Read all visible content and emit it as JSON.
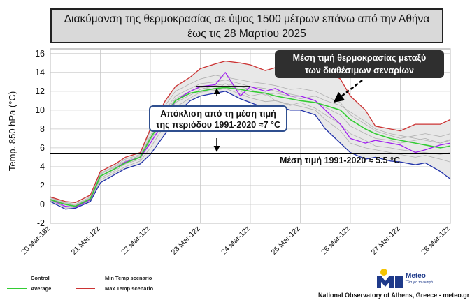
{
  "header": {
    "title_line1": "Διακύμανση της θερμοκρασίας σε ύψος 1500 μέτρων επάνω από την Αθήνα",
    "title_line2": "έως τις 28 Μαρτίου 2025"
  },
  "annotations": {
    "callout_line1": "Μέση τιμή θερμοκρασίας μεταξύ",
    "callout_line2": "των διαθέσιμων σεναρίων",
    "deviation_line1": "Απόκλιση από τη μέση τιμή",
    "deviation_line2": "της περιόδου 1991-2020  ≈7 °C",
    "mean_label": "Μέση τιμή 1991-2020  ≈ 5.5 °C"
  },
  "legend": {
    "control": "Control",
    "average": "Average",
    "min": "Min Temp scenario",
    "max": "Max Temp scenario"
  },
  "footer": {
    "text": "National Observatory of Athens, Greece - meteo.gr"
  },
  "logo": {
    "name": "Meteo",
    "tagline": "Όλα για τον καιρό"
  },
  "colors": {
    "control": "#a020f0",
    "average": "#33cc33",
    "min": "#2233aa",
    "max": "#cc3333",
    "ensemble": "#b0b0b0",
    "band": "#e8e8e8",
    "mean_line": "#000000"
  },
  "chart_data": {
    "type": "line",
    "title": "",
    "ylabel": "Temp. 850 hPa (°C)",
    "xlabel": "",
    "ylim": [
      -2,
      16.5
    ],
    "yticks": [
      -2,
      0,
      2,
      4,
      6,
      8,
      10,
      12,
      14,
      16
    ],
    "xlim": [
      0,
      8
    ],
    "xtick_labels": [
      "20 Mar-18z",
      "21 Mar-12z",
      "22 Mar-12z",
      "23 Mar-12z",
      "24 Mar-12z",
      "25 Mar-12z",
      "26 Mar-12z",
      "27 Mar-12z",
      "28 Mar-12z"
    ],
    "x": [
      0,
      0.3,
      0.5,
      0.8,
      1.0,
      1.3,
      1.5,
      1.8,
      2.0,
      2.3,
      2.5,
      2.8,
      3.0,
      3.3,
      3.5,
      3.8,
      4.0,
      4.3,
      4.5,
      4.8,
      5.0,
      5.3,
      5.5,
      5.8,
      6.0,
      6.3,
      6.5,
      6.8,
      7.0,
      7.3,
      7.5,
      7.8,
      8.0
    ],
    "reference_mean": 5.4,
    "reference_label": "Μέση τιμή 1991-2020  ≈ 5.5 °C",
    "deviation_arrow": {
      "from": 5.4,
      "to": 12.5
    },
    "series": [
      {
        "name": "Max Temp scenario",
        "key": "max",
        "values": [
          0.8,
          0.3,
          0.2,
          1.0,
          3.5,
          4.3,
          5.0,
          5.5,
          8.0,
          11.0,
          12.5,
          13.5,
          14.4,
          14.9,
          15.2,
          15.0,
          14.8,
          14.2,
          14.5,
          14.3,
          14.5,
          14.6,
          14.3,
          13.3,
          11.5,
          10.0,
          8.3,
          8.0,
          7.8,
          8.5,
          8.5,
          8.5,
          9.0
        ]
      },
      {
        "name": "Control",
        "key": "control",
        "values": [
          0.5,
          -0.2,
          -0.3,
          0.5,
          3.0,
          3.8,
          4.5,
          5.0,
          6.5,
          9.0,
          11.0,
          12.0,
          12.5,
          12.7,
          14.0,
          11.5,
          12.5,
          12.0,
          12.3,
          11.5,
          11.5,
          11.0,
          10.0,
          8.5,
          7.0,
          6.5,
          6.8,
          6.5,
          6.3,
          5.5,
          5.8,
          6.3,
          6.5
        ]
      },
      {
        "name": "Average",
        "key": "average",
        "values": [
          0.5,
          0.0,
          -0.2,
          0.6,
          3.0,
          3.8,
          4.4,
          5.0,
          7.0,
          9.5,
          11.0,
          11.8,
          12.0,
          12.3,
          12.4,
          12.2,
          12.0,
          11.8,
          11.5,
          11.2,
          11.0,
          10.8,
          10.5,
          10.0,
          9.0,
          8.0,
          7.5,
          7.0,
          6.8,
          6.5,
          6.3,
          6.0,
          6.2
        ]
      },
      {
        "name": "Min Temp scenario",
        "key": "min",
        "values": [
          0.3,
          -0.5,
          -0.4,
          0.3,
          2.3,
          3.2,
          3.8,
          4.3,
          5.3,
          7.5,
          9.5,
          11.0,
          11.5,
          11.8,
          12.0,
          11.2,
          10.8,
          10.2,
          10.5,
          10.0,
          10.0,
          9.5,
          8.0,
          6.5,
          5.5,
          4.8,
          5.0,
          4.6,
          4.5,
          4.2,
          4.4,
          3.5,
          2.7
        ]
      }
    ],
    "ensemble_members": [
      [
        0.6,
        0.1,
        -0.1,
        0.7,
        3.2,
        4.0,
        4.6,
        5.2,
        7.3,
        10.0,
        11.5,
        12.3,
        12.8,
        13.0,
        13.2,
        12.8,
        12.5,
        12.3,
        12.0,
        11.7,
        11.5,
        11.0,
        10.3,
        9.5,
        8.3,
        7.5,
        7.0,
        6.8,
        6.5,
        6.8,
        7.0,
        6.5,
        6.8
      ],
      [
        0.5,
        0.0,
        -0.2,
        0.5,
        2.8,
        3.6,
        4.3,
        4.8,
        6.8,
        9.2,
        10.8,
        11.6,
        12.2,
        12.6,
        12.8,
        12.0,
        11.5,
        11.8,
        11.0,
        10.5,
        10.8,
        10.2,
        9.5,
        8.5,
        7.5,
        6.8,
        6.2,
        6.0,
        5.8,
        5.6,
        5.5,
        5.3,
        5.5
      ],
      [
        0.7,
        0.2,
        0.0,
        0.8,
        3.3,
        4.1,
        4.8,
        5.3,
        7.8,
        10.5,
        12.0,
        12.8,
        13.3,
        13.7,
        13.5,
        13.2,
        13.0,
        12.8,
        12.6,
        12.2,
        12.3,
        12.0,
        11.5,
        10.8,
        9.5,
        8.5,
        7.8,
        7.3,
        7.0,
        7.3,
        7.5,
        7.2,
        7.5
      ],
      [
        0.4,
        -0.3,
        -0.3,
        0.4,
        2.6,
        3.4,
        4.0,
        4.6,
        6.0,
        8.5,
        10.3,
        11.3,
        11.9,
        12.1,
        12.3,
        11.7,
        11.3,
        10.9,
        11.0,
        10.6,
        10.4,
        10.0,
        9.0,
        7.8,
        6.5,
        6.0,
        5.8,
        5.5,
        5.3,
        5.0,
        5.2,
        4.8,
        4.5
      ],
      [
        0.6,
        0.1,
        -0.1,
        0.6,
        3.0,
        3.9,
        4.5,
        5.1,
        7.1,
        9.7,
        11.2,
        12.0,
        12.4,
        12.2,
        12.8,
        12.5,
        12.2,
        11.6,
        11.8,
        11.5,
        11.2,
        11.5,
        11.0,
        10.5,
        9.8,
        8.8,
        8.0,
        7.5,
        7.3,
        7.0,
        6.8,
        6.5,
        6.9
      ]
    ]
  }
}
